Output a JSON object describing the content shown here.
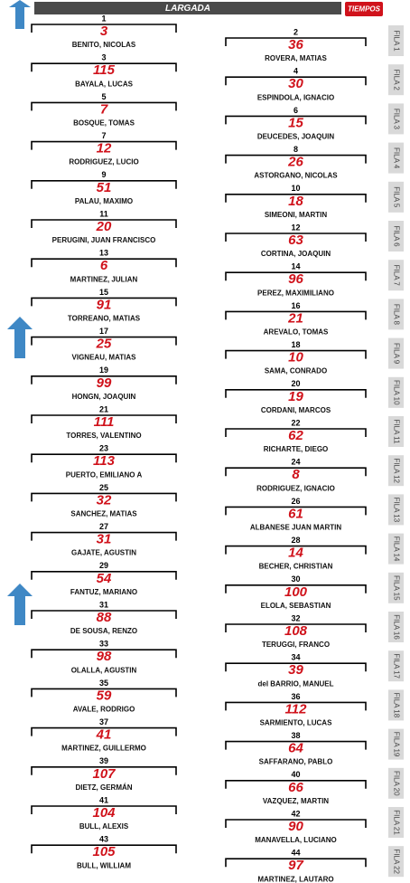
{
  "header": {
    "title": "LARGADA",
    "logo": "TIEMPOS"
  },
  "grid": [
    {
      "position": 1,
      "car": 3,
      "driver": "BENITO, NICOLAS"
    },
    {
      "position": 2,
      "car": 36,
      "driver": "ROVERA, MATIAS"
    },
    {
      "position": 3,
      "car": 115,
      "driver": "BAYALA, LUCAS"
    },
    {
      "position": 4,
      "car": 30,
      "driver": "ESPINDOLA, IGNACIO"
    },
    {
      "position": 5,
      "car": 7,
      "driver": "BOSQUE, TOMAS"
    },
    {
      "position": 6,
      "car": 15,
      "driver": "DEUCEDES, JOAQUIN"
    },
    {
      "position": 7,
      "car": 12,
      "driver": "RODRIGUEZ, LUCIO"
    },
    {
      "position": 8,
      "car": 26,
      "driver": "ASTORGANO, NICOLAS"
    },
    {
      "position": 9,
      "car": 51,
      "driver": "PALAU, MAXIMO"
    },
    {
      "position": 10,
      "car": 18,
      "driver": "SIMEONI, MARTIN"
    },
    {
      "position": 11,
      "car": 20,
      "driver": "PERUGINI, JUAN FRANCISCO"
    },
    {
      "position": 12,
      "car": 63,
      "driver": "CORTINA, JOAQUIN"
    },
    {
      "position": 13,
      "car": 6,
      "driver": "MARTINEZ, JULIAN"
    },
    {
      "position": 14,
      "car": 96,
      "driver": "PEREZ, MAXIMILIANO"
    },
    {
      "position": 15,
      "car": 91,
      "driver": "TORREANO, MATIAS"
    },
    {
      "position": 16,
      "car": 21,
      "driver": "AREVALO, TOMAS"
    },
    {
      "position": 17,
      "car": 25,
      "driver": "VIGNEAU, MATIAS"
    },
    {
      "position": 18,
      "car": 10,
      "driver": "SAMA, CONRADO"
    },
    {
      "position": 19,
      "car": 99,
      "driver": "HONGN, JOAQUIN"
    },
    {
      "position": 20,
      "car": 19,
      "driver": "CORDANI, MARCOS"
    },
    {
      "position": 21,
      "car": 111,
      "driver": "TORRES, VALENTINO"
    },
    {
      "position": 22,
      "car": 62,
      "driver": "RICHARTE, DIEGO"
    },
    {
      "position": 23,
      "car": 113,
      "driver": "PUERTO, EMILIANO A"
    },
    {
      "position": 24,
      "car": 8,
      "driver": "RODRIGUEZ, IGNACIO"
    },
    {
      "position": 25,
      "car": 32,
      "driver": "SANCHEZ, MATIAS"
    },
    {
      "position": 26,
      "car": 61,
      "driver": "ALBANESE JUAN MARTIN"
    },
    {
      "position": 27,
      "car": 31,
      "driver": "GAJATE, AGUSTIN"
    },
    {
      "position": 28,
      "car": 14,
      "driver": "BECHER, CHRISTIAN"
    },
    {
      "position": 29,
      "car": 54,
      "driver": "FANTUZ, MARIANO"
    },
    {
      "position": 30,
      "car": 100,
      "driver": "ELOLA, SEBASTIAN"
    },
    {
      "position": 31,
      "car": 88,
      "driver": "DE SOUSA, RENZO"
    },
    {
      "position": 32,
      "car": 108,
      "driver": "TERUGGI, FRANCO"
    },
    {
      "position": 33,
      "car": 98,
      "driver": "OLALLA, AGUSTIN"
    },
    {
      "position": 34,
      "car": 39,
      "driver": "del BARRIO, MANUEL"
    },
    {
      "position": 35,
      "car": 59,
      "driver": "AVALE, RODRIGO"
    },
    {
      "position": 36,
      "car": 112,
      "driver": "SARMIENTO, LUCAS"
    },
    {
      "position": 37,
      "car": 41,
      "driver": "MARTINEZ, GUILLERMO"
    },
    {
      "position": 38,
      "car": 64,
      "driver": "SAFFARANO, PABLO"
    },
    {
      "position": 39,
      "car": 107,
      "driver": "DIETZ, GERMÁN"
    },
    {
      "position": 40,
      "car": 66,
      "driver": "VAZQUEZ, MARTIN"
    },
    {
      "position": 41,
      "car": 104,
      "driver": "BULL, ALEXIS"
    },
    {
      "position": 42,
      "car": 90,
      "driver": "MANAVELLA, LUCIANO"
    },
    {
      "position": 43,
      "car": 105,
      "driver": "BULL, WILLIAM"
    },
    {
      "position": 44,
      "car": 97,
      "driver": "MARTINEZ, LAUTARO"
    }
  ],
  "rows": [
    "FILA 1",
    "FILA 2",
    "FILA 3",
    "FILA 4",
    "FILA 5",
    "FILA 6",
    "FILA 7",
    "FILA 8",
    "FILA 9",
    "FILA 10",
    "FILA 11",
    "FILA 12",
    "FILA 13",
    "FILA 14",
    "FILA 15",
    "FILA 16",
    "FILA 17",
    "FILA 18",
    "FILA 19",
    "FILA 20",
    "FILA 21",
    "FILA 22"
  ]
}
